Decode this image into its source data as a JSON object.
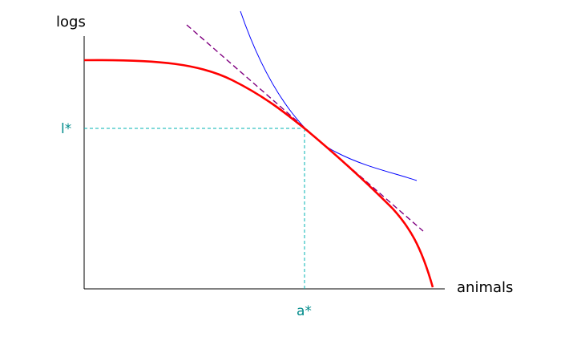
{
  "diagram": {
    "y_axis_label": "logs",
    "x_axis_label": "animals",
    "y_star_label": "l*",
    "x_star_label": "a*",
    "colors": {
      "axes": "#000000",
      "frontier": "#ff0000",
      "indifference_curve": "#0000ff",
      "tangent_line": "#800080",
      "guide_lines": "#00b3b3",
      "star_labels": "#008b8b"
    },
    "elements": {
      "frontier": "production possibilities frontier (red, concave)",
      "indifference_curve": "indifference curve (blue, convex)",
      "tangent_line": "dashed tangent line (purple)",
      "guides": "dashed guide lines from optimum to axes"
    }
  }
}
